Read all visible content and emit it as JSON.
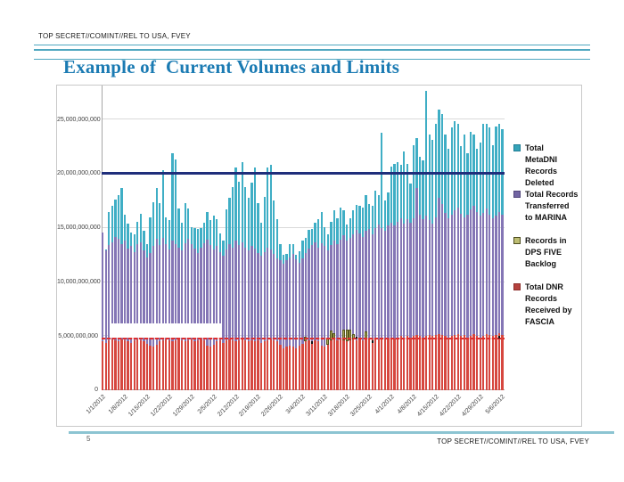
{
  "slide": {
    "classification_top": "TOP SECRET//COMINT//REL TO USA, FVEY",
    "classification_bottom": "TOP SECRET//COMINT//REL TO USA, FVEY",
    "title": "Example of  Current Volumes and Limits",
    "page_number": "5"
  },
  "legend": {
    "items": [
      {
        "label": "Total MetaDNI Records Deleted",
        "lines": [
          "Total",
          "MetaDNI",
          "Records",
          "Deleted"
        ],
        "color": "#35A3B8",
        "border": "#1F7E95",
        "gap": false
      },
      {
        "label": "Total Records Transferred to MARINA",
        "lines": [
          "Total Records",
          "Transferred",
          "to MARINA"
        ],
        "color": "#7265A3",
        "border": "#53477C",
        "gap": false
      },
      {
        "label": "Records in DPS FIVE Backlog",
        "lines": [
          "Records in",
          "DPS FIVE",
          "Backlog"
        ],
        "color": "#BDBD72",
        "border": "#4E4E20",
        "gap": true
      },
      {
        "label": "Total DNR Records Received by FASCIA",
        "lines": [
          "Total DNR",
          "Records",
          "Received by",
          "FASCIA"
        ],
        "color": "#B5423E",
        "border": "#8E2F2C",
        "gap": true
      }
    ]
  },
  "chart_data": {
    "type": "bar",
    "stacked": true,
    "units": "records (values in billions)",
    "n_days": 127,
    "x_range": [
      "1/1/2012",
      "5/6/2012"
    ],
    "grid": true,
    "legend_position": "right",
    "ylim_b": [
      0,
      28.1
    ],
    "y_ticks": [
      {
        "value_b": 25,
        "label": "25,000,000,000"
      },
      {
        "value_b": 20,
        "label": "20,000,000,000"
      },
      {
        "value_b": 15,
        "label": "15,000,000,000"
      },
      {
        "value_b": 10,
        "label": "10,000,000,000"
      },
      {
        "value_b": 5,
        "label": "5,000,000,000"
      },
      {
        "value_b": 0,
        "label": "0"
      }
    ],
    "x_tick_labels": [
      "1/1/2012",
      "1/8/2012",
      "1/15/2012",
      "1/22/2012",
      "1/29/2012",
      "2/5/2012",
      "2/12/2012",
      "2/19/2012",
      "2/26/2012",
      "3/4/2012",
      "3/11/2012",
      "3/18/2012",
      "3/25/2012",
      "4/1/2012",
      "4/8/2012",
      "4/15/2012",
      "4/22/2012",
      "4/29/2012",
      "5/6/2012"
    ],
    "series_names": {
      "teal": "Total MetaDNI Records Deleted",
      "purple": "Total Records Transferred to MARINA",
      "olive": "Records in DPS FIVE Backlog",
      "red": "Total DNR Records Received by FASCIA"
    },
    "colors": {
      "teal": "#3FAEC5",
      "purple": "#8476B5",
      "red": "#D6473F",
      "olive": "#A8A855",
      "olive_border": "#55551E",
      "navy_line": "#1F2E7B",
      "red_line": "#E02E2E",
      "grid": "#D9D9D9",
      "axis": "#A6A6A6"
    },
    "dnr_top_b": [
      4.5,
      4.4,
      4.6,
      4.7,
      4.6,
      4.5,
      4.7,
      4.6,
      4.5,
      4.4,
      4.6,
      4.7,
      4.6,
      4.5,
      4.3,
      4.1,
      4.0,
      4.2,
      4.5,
      4.6,
      4.7,
      4.6,
      4.5,
      4.6,
      4.7,
      4.6,
      4.5,
      4.6,
      4.7,
      4.5,
      4.6,
      4.7,
      4.6,
      4.1,
      4.0,
      4.2,
      4.5,
      4.6,
      4.4,
      4.6,
      4.7,
      4.6,
      4.5,
      4.6,
      4.7,
      4.6,
      4.5,
      4.6,
      4.5,
      4.6,
      4.4,
      4.5,
      4.6,
      4.7,
      4.6,
      4.5,
      4.2,
      3.9,
      4.0,
      4.1,
      4.0,
      3.9,
      4.1,
      4.3,
      4.5,
      4.6,
      4.5,
      4.6,
      4.5,
      4.1,
      4.0,
      4.2,
      4.6,
      4.7,
      4.6,
      4.7,
      4.6,
      4.5,
      4.6,
      4.7,
      4.6,
      4.7,
      4.6,
      4.7,
      4.8,
      4.7,
      4.8,
      4.7,
      4.8,
      4.7,
      4.8,
      4.9,
      4.8,
      4.9,
      5.0,
      4.9,
      5.0,
      4.9,
      5.0,
      5.1,
      5.0,
      4.9,
      5.0,
      5.1,
      5.0,
      5.1,
      5.2,
      5.1,
      5.0,
      4.9,
      5.0,
      5.1,
      5.2,
      5.0,
      5.1,
      4.9,
      5.0,
      5.2,
      5.0,
      4.9,
      5.0,
      5.2,
      5.1,
      5.0,
      5.1,
      5.3,
      5.1
    ],
    "marina_top_b": [
      14.6,
      12.9,
      13.4,
      13.7,
      14.2,
      14.0,
      13.5,
      13.8,
      13.1,
      13.3,
      12.8,
      13.5,
      13.7,
      12.9,
      12.3,
      12.7,
      13.3,
      14.0,
      13.4,
      14.1,
      13.5,
      13.0,
      13.8,
      13.5,
      13.2,
      12.9,
      13.6,
      14.0,
      13.5,
      13.1,
      12.7,
      13.2,
      13.6,
      13.9,
      13.4,
      13.0,
      13.3,
      12.8,
      12.4,
      13.0,
      13.5,
      13.2,
      13.8,
      13.4,
      13.7,
      13.2,
      12.9,
      13.3,
      13.1,
      12.7,
      12.4,
      12.8,
      13.2,
      13.0,
      12.6,
      12.2,
      12.0,
      11.7,
      12.0,
      12.3,
      12.6,
      12.1,
      11.8,
      12.2,
      12.7,
      13.1,
      13.4,
      13.7,
      13.2,
      13.6,
      13.3,
      12.9,
      13.4,
      13.8,
      13.5,
      13.9,
      14.3,
      13.8,
      14.1,
      14.4,
      14.8,
      14.5,
      14.2,
      14.7,
      14.9,
      14.4,
      15.0,
      15.3,
      15.0,
      14.7,
      15.2,
      15.5,
      15.2,
      15.6,
      15.9,
      15.4,
      15.8,
      15.5,
      15.9,
      18.7,
      16.2,
      15.8,
      16.1,
      15.7,
      15.4,
      16.0,
      17.8,
      17.2,
      16.4,
      15.9,
      16.2,
      16.6,
      16.9,
      16.3,
      16.0,
      16.2,
      16.7,
      17.0,
      16.5,
      16.1,
      16.4,
      16.8,
      16.2,
      15.9,
      16.1,
      16.5,
      16.2
    ],
    "total_top_b": [
      14.6,
      13.0,
      16.5,
      17.0,
      17.6,
      18.0,
      18.7,
      16.2,
      15.4,
      14.6,
      14.4,
      15.6,
      16.3,
      14.7,
      13.5,
      16.0,
      17.4,
      18.7,
      17.3,
      20.3,
      16.0,
      15.7,
      21.9,
      21.3,
      16.8,
      15.5,
      17.3,
      16.8,
      15.1,
      15.0,
      14.9,
      15.0,
      15.5,
      16.5,
      15.7,
      16.1,
      15.8,
      14.5,
      13.8,
      16.7,
      17.8,
      18.8,
      20.6,
      19.3,
      21.1,
      18.8,
      17.8,
      19.2,
      20.6,
      17.3,
      15.5,
      17.9,
      20.6,
      20.8,
      17.5,
      15.8,
      13.5,
      12.5,
      12.6,
      13.5,
      13.5,
      12.5,
      12.8,
      13.8,
      14.1,
      14.8,
      14.9,
      15.5,
      15.8,
      16.5,
      15.1,
      14.4,
      15.6,
      16.6,
      15.9,
      16.9,
      16.6,
      15.3,
      15.9,
      16.6,
      17.1,
      17.0,
      16.9,
      18.0,
      17.2,
      17.0,
      18.4,
      18.0,
      23.8,
      17.5,
      18.3,
      20.7,
      20.9,
      21.1,
      20.8,
      22.1,
      20.9,
      19.1,
      22.6,
      23.3,
      21.6,
      21.2,
      27.7,
      23.6,
      23.1,
      24.6,
      25.9,
      25.5,
      23.6,
      22.3,
      24.3,
      24.9,
      24.6,
      22.6,
      23.6,
      21.9,
      23.9,
      23.6,
      22.3,
      22.9,
      24.6,
      24.6,
      24.3,
      22.6,
      24.4,
      24.6,
      24.1
    ],
    "dps_backlog_b": {
      "64": 0.4,
      "71": 0.6,
      "72": 0.9,
      "73": 0.6,
      "76": 1.0,
      "77": 1.1,
      "78": 1.0,
      "79": 0.5,
      "83": 0.7
    },
    "reference_lines": [
      {
        "value_b": 20.0,
        "color": "#1F2E7B",
        "style": "solid"
      },
      {
        "value_b": 4.75,
        "color": "#E02E2E",
        "style": "dashed"
      }
    ],
    "redaction_box": {
      "day_start": 2.5,
      "day_end": 38,
      "bottom_b": 4.86,
      "top_b": 6.17
    },
    "markers": [
      {
        "day": 66,
        "value_b": 4.3
      },
      {
        "day": 80,
        "value_b": 4.75
      },
      {
        "day": 85,
        "value_b": 4.4
      },
      {
        "day": 125,
        "value_b": 4.8
      }
    ]
  }
}
